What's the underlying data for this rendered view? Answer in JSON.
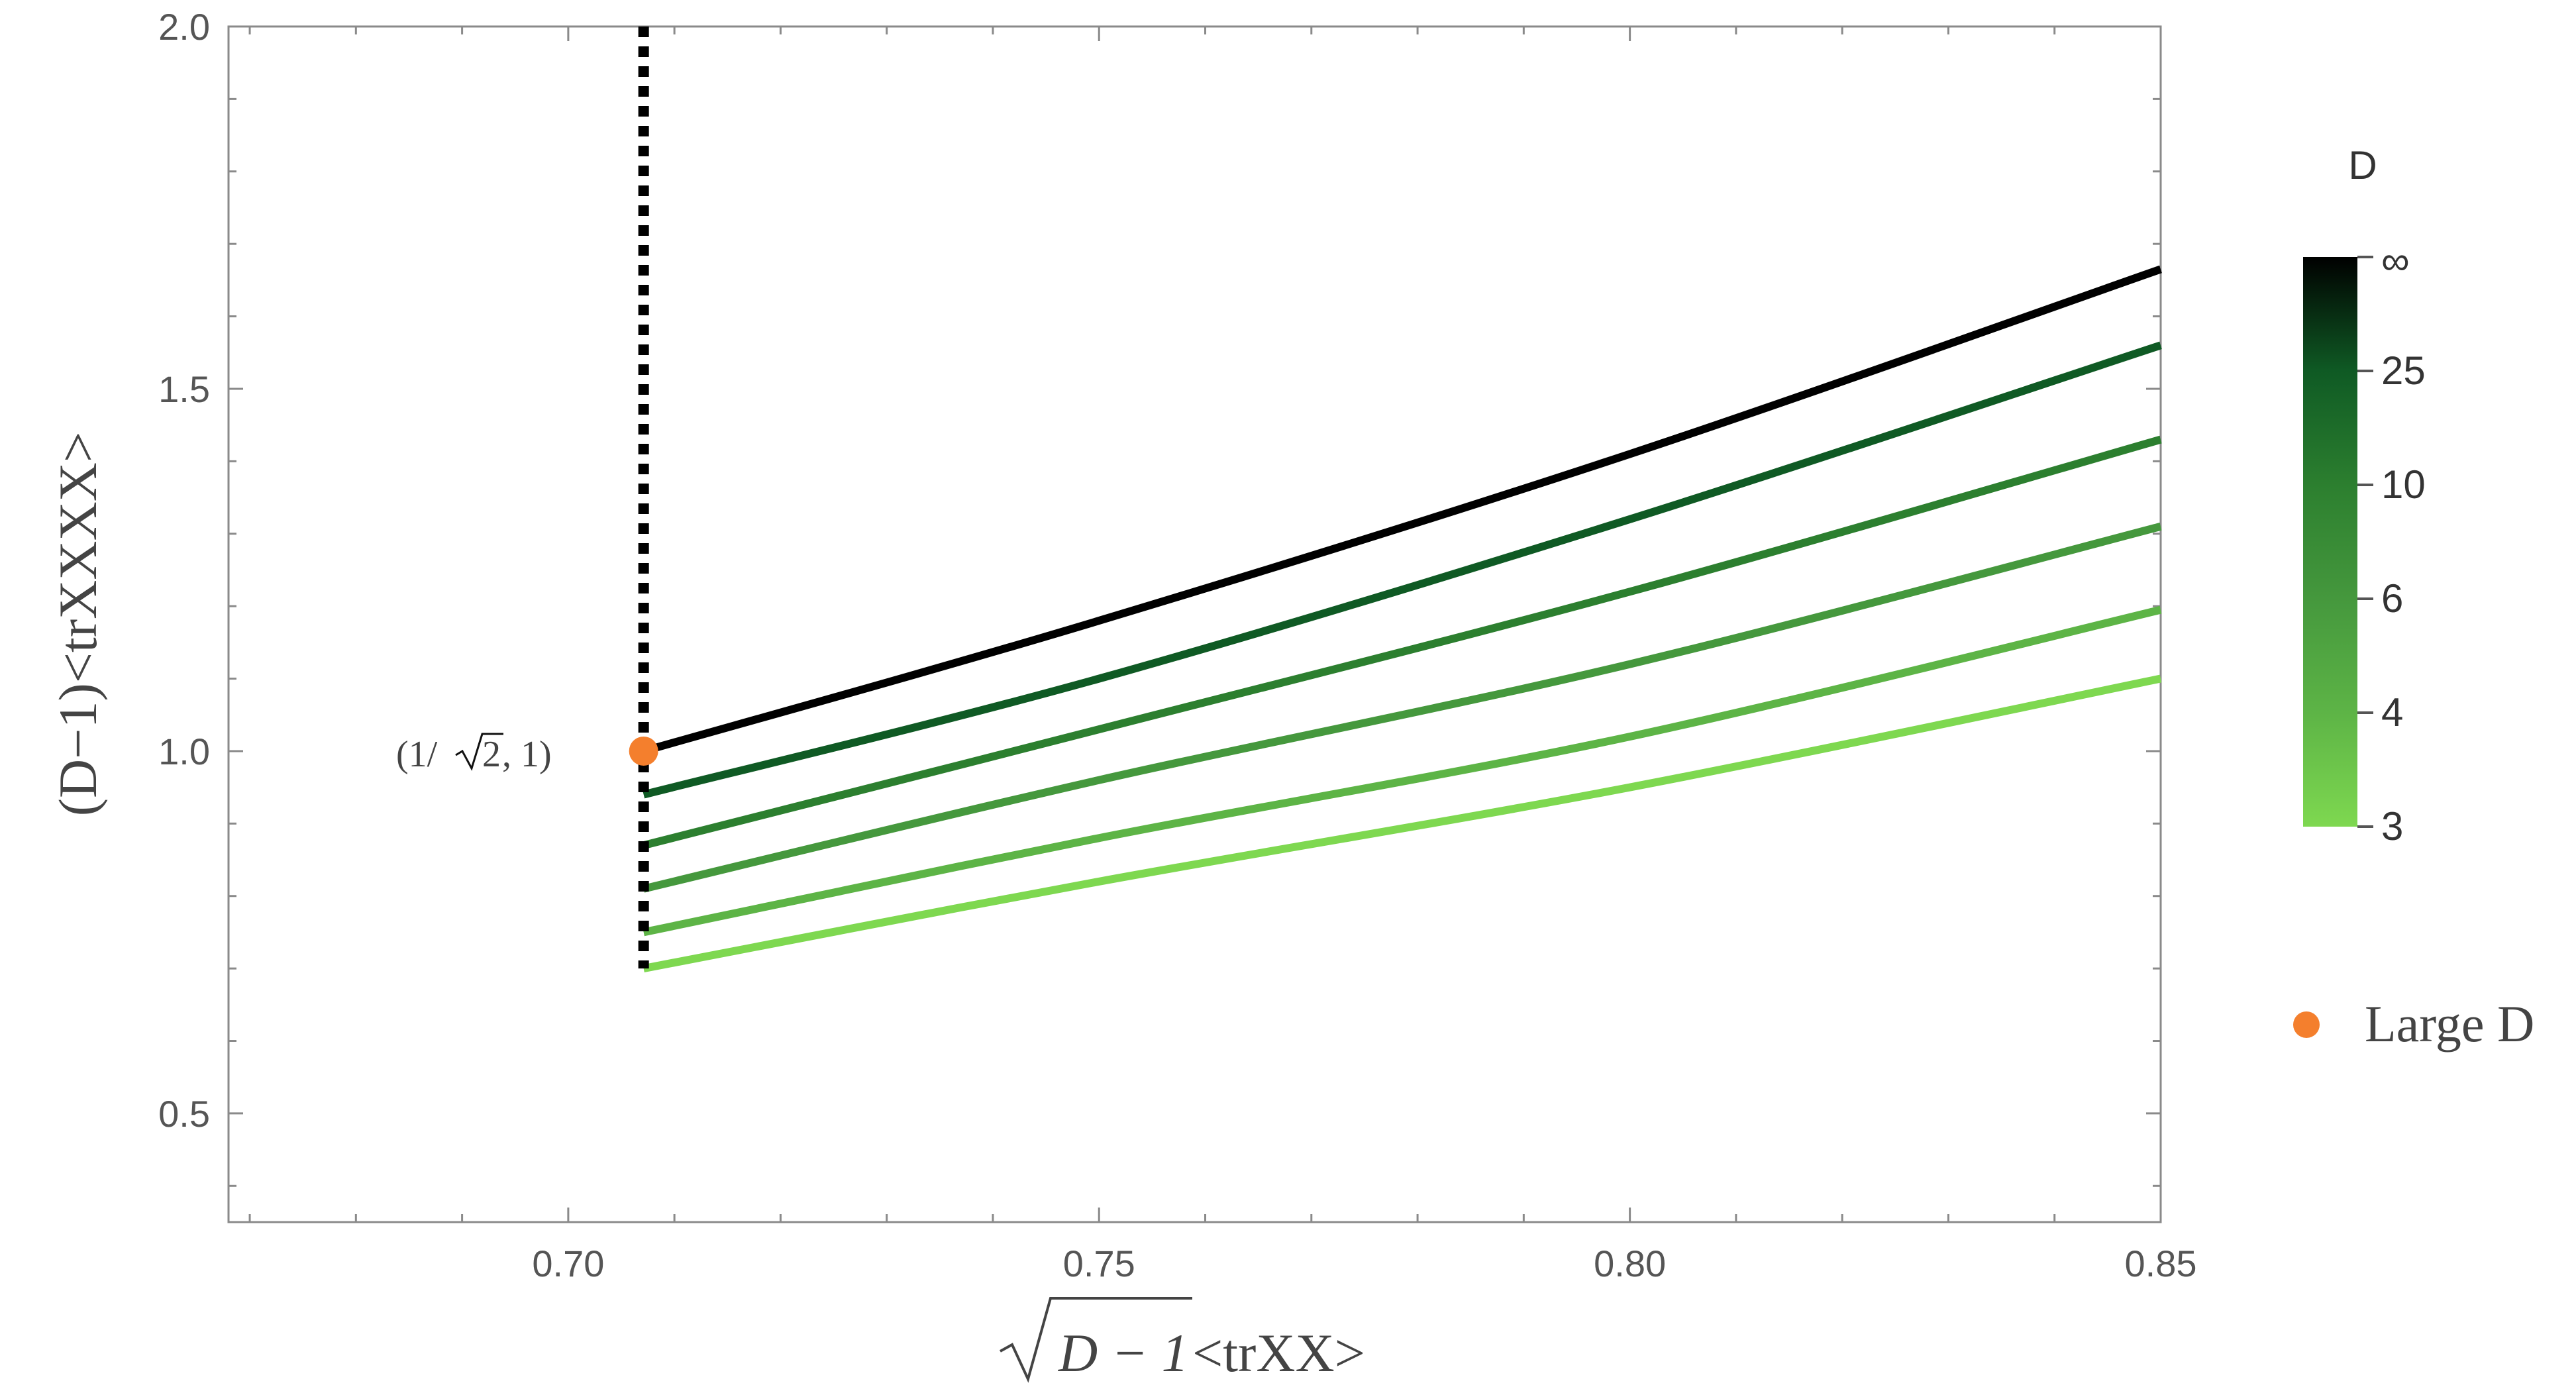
{
  "chart_data": {
    "type": "line",
    "xlabel": {
      "radical": "D − 1",
      "suffix": " <trXX>"
    },
    "ylabel": "(D−1)<trXXXX>",
    "xlim": [
      0.668,
      0.85
    ],
    "ylim": [
      0.35,
      2.0
    ],
    "x_ticks": [
      {
        "value": 0.7,
        "label": "0.70"
      },
      {
        "value": 0.75,
        "label": "0.75"
      },
      {
        "value": 0.8,
        "label": "0.80"
      },
      {
        "value": 0.85,
        "label": "0.85"
      }
    ],
    "y_ticks": [
      {
        "value": 0.5,
        "label": "0.5"
      },
      {
        "value": 1.0,
        "label": "1.0"
      },
      {
        "value": 1.5,
        "label": "1.5"
      },
      {
        "value": 2.0,
        "label": "2.0"
      }
    ],
    "series": [
      {
        "color": "#000000",
        "x": [
          0.7071,
          0.75,
          0.8,
          0.85
        ],
        "y": [
          1.0,
          1.18,
          1.41,
          1.665
        ]
      },
      {
        "color": "#0f5a24",
        "x": [
          0.7071,
          0.75,
          0.8,
          0.85
        ],
        "y": [
          0.94,
          1.1,
          1.32,
          1.56
        ]
      },
      {
        "color": "#2c7f2f",
        "x": [
          0.7071,
          0.75,
          0.8,
          0.85
        ],
        "y": [
          0.87,
          1.03,
          1.22,
          1.43
        ]
      },
      {
        "color": "#45983d",
        "x": [
          0.7071,
          0.75,
          0.8,
          0.85
        ],
        "y": [
          0.81,
          0.96,
          1.12,
          1.31
        ]
      },
      {
        "color": "#5db446",
        "x": [
          0.7071,
          0.75,
          0.8,
          0.85
        ],
        "y": [
          0.75,
          0.88,
          1.02,
          1.195
        ]
      },
      {
        "color": "#7ed850",
        "x": [
          0.7071,
          0.75,
          0.8,
          0.85
        ],
        "y": [
          0.7,
          0.82,
          0.95,
          1.1
        ]
      }
    ],
    "vertical_line": {
      "x": 0.7071,
      "y_from": 0.7,
      "y_to": 2.0,
      "style": "dotted",
      "color": "#000000"
    },
    "point": {
      "x": 0.7071,
      "y": 1.0,
      "color": "#f47f2d",
      "label": {
        "prefix": "(1/ ",
        "radical": "2",
        "suffix": ", 1)"
      }
    },
    "colorbar": {
      "title": "D",
      "ticks": [
        {
          "label": "∞",
          "frac": 1.0
        },
        {
          "label": "25",
          "frac": 0.8
        },
        {
          "label": "10",
          "frac": 0.6
        },
        {
          "label": "6",
          "frac": 0.4
        },
        {
          "label": "4",
          "frac": 0.2
        },
        {
          "label": "3",
          "frac": 0.0
        }
      ],
      "gradient": [
        "#000000",
        "#0f5a24",
        "#2c7f2f",
        "#45983d",
        "#5db446",
        "#7ed850"
      ]
    },
    "legend": [
      {
        "label": "Large D",
        "color": "#f47f2d",
        "marker": "circle"
      }
    ],
    "legend_placement": "right"
  }
}
